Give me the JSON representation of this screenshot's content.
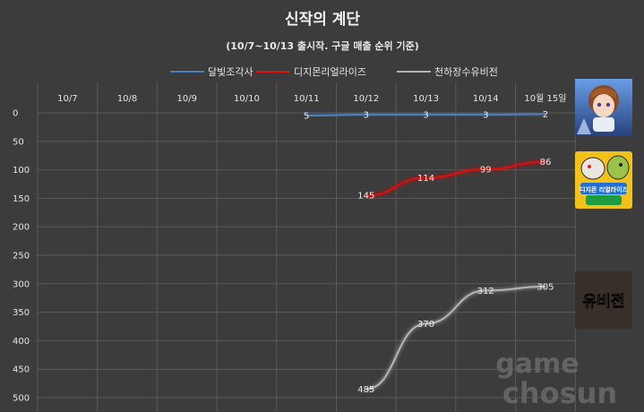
{
  "chart_data": {
    "type": "line",
    "title": "신작의 계단",
    "subtitle": "(10/7~10/13 출시작. 구글 매출 순위 기준)",
    "categories": [
      "10/7",
      "10/8",
      "10/9",
      "10/10",
      "10/11",
      "10/12",
      "10/13",
      "10/14",
      "10월 15일"
    ],
    "y_axis": {
      "ticks": [
        "0",
        "50",
        "100",
        "150",
        "200",
        "250",
        "300",
        "350",
        "400",
        "450",
        "500"
      ],
      "range": [
        0,
        500
      ],
      "reversed": true
    },
    "grid": true,
    "legend_position": "top",
    "series": [
      {
        "name": "달빛조각사",
        "color": "#4a7fc6",
        "values": [
          null,
          null,
          null,
          null,
          5,
          3,
          3,
          3,
          2
        ],
        "labels": [
          "",
          "",
          "",
          "",
          "5",
          "3",
          "3",
          "3",
          "2"
        ]
      },
      {
        "name": "디지몬리얼라이즈",
        "color": "#e01010",
        "values": [
          null,
          null,
          null,
          null,
          null,
          145,
          114,
          99,
          86
        ],
        "labels": [
          "",
          "",
          "",
          "",
          "",
          "145",
          "114",
          "99",
          "86"
        ]
      },
      {
        "name": "천하장수유비전",
        "color": "#b4b4b4",
        "values": [
          null,
          null,
          null,
          null,
          null,
          485,
          370,
          312,
          305
        ],
        "labels": [
          "",
          "",
          "",
          "",
          "",
          "485",
          "370",
          "312",
          "305"
        ]
      }
    ]
  },
  "thumbnails": [
    {
      "icon": "anime-girl-game-icon",
      "bg": "#3a5fa8"
    },
    {
      "icon": "digimon-game-icon",
      "bg": "#f2c21b",
      "caption": "디지몬 리얼라이즈"
    },
    {
      "icon": "yubijeon-game-icon",
      "bg": "#2a2622",
      "caption": "유비전"
    }
  ],
  "watermark": {
    "line1": "game",
    "line2": "chosun"
  }
}
